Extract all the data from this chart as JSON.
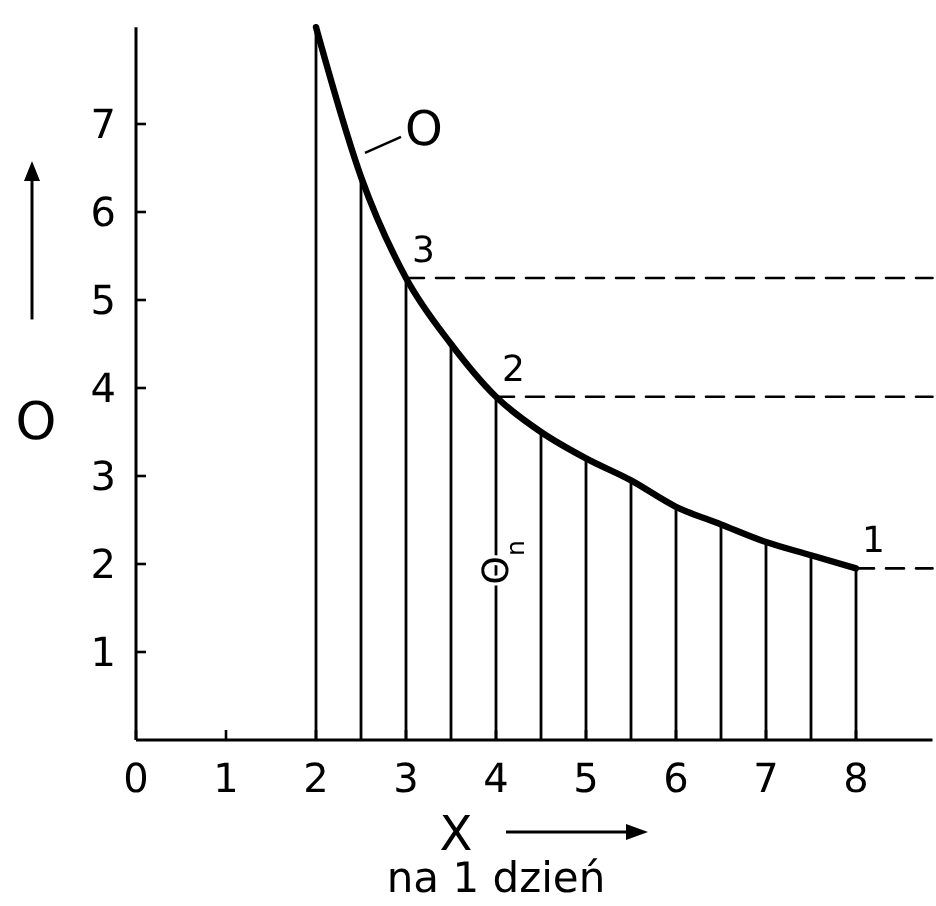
{
  "chart_data": {
    "type": "line",
    "xlabel": "X",
    "ylabel": "O",
    "xlim": [
      0,
      8.85
    ],
    "ylim": [
      0,
      8.1
    ],
    "xticks": [
      0,
      1,
      2,
      3,
      4,
      5,
      6,
      7,
      8
    ],
    "yticks": [
      1,
      2,
      3,
      4,
      5,
      6,
      7
    ],
    "grid": false,
    "marker": "none",
    "series": [
      {
        "name": "O",
        "color": "#000000",
        "x": [
          2,
          2.5,
          3,
          3.5,
          4,
          4.5,
          5,
          5.5,
          6,
          6.5,
          7,
          7.5,
          8
        ],
        "values": [
          8.1,
          6.4,
          5.25,
          4.5,
          3.9,
          3.5,
          3.2,
          2.95,
          2.65,
          2.45,
          2.25,
          2.1,
          1.95
        ]
      },
      {
        "type": "bar",
        "name": "O$_{n}$",
        "color": "#000000",
        "x": [
          2,
          2.5,
          3,
          3.5,
          4,
          4.5,
          5,
          5.5,
          6,
          6.5,
          7,
          7.5,
          8
        ],
        "values": [
          8.1,
          6.4,
          5.25,
          4.5,
          3.9,
          3.5,
          3.2,
          2.95,
          2.65,
          2.45,
          2.25,
          2.1,
          1.95
        ]
      },
      {
        "line_style": "dashed",
        "color": "#000000",
        "x": [
          3,
          8.85
        ],
        "values": [
          5.25,
          5.25
        ]
      },
      {
        "line_style": "dashed",
        "color": "#000000",
        "x": [
          4,
          8.85
        ],
        "values": [
          3.9,
          3.9
        ]
      },
      {
        "line_style": "dashed",
        "color": "#000000",
        "x": [
          8,
          8.85
        ],
        "values": [
          1.95,
          1.95
        ]
      }
    ],
    "annotations": [
      {
        "text": "3",
        "x": 3,
        "y": 5.25
      },
      {
        "text": "2",
        "x": 4,
        "y": 3.9
      },
      {
        "text": "1",
        "x": 8,
        "y": 1.95
      },
      "na 1 dzień"
    ]
  }
}
